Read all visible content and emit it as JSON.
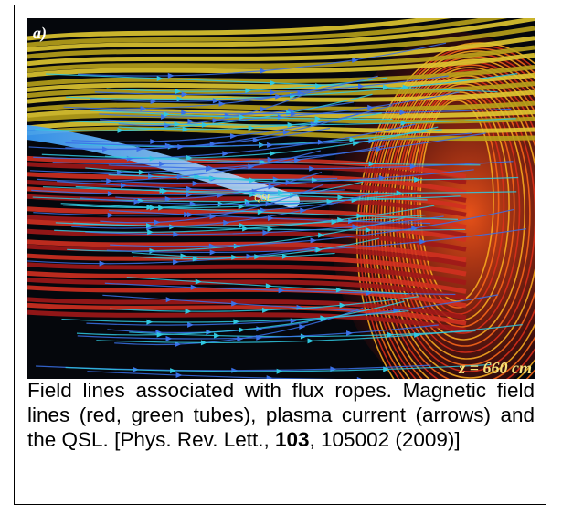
{
  "figure": {
    "panel_label": "a)",
    "annotations": {
      "qsl": "QSL",
      "position": "z = 660 cm"
    },
    "caption": {
      "text": "Field lines associated with flux ropes. Magnetic field lines (red, green tubes), plasma current (arrows) and the QSL.",
      "reference": {
        "prefix": "[Phys. Rev. Lett., ",
        "volume": "103",
        "suffix": ", 105002 (2009)]"
      }
    }
  }
}
